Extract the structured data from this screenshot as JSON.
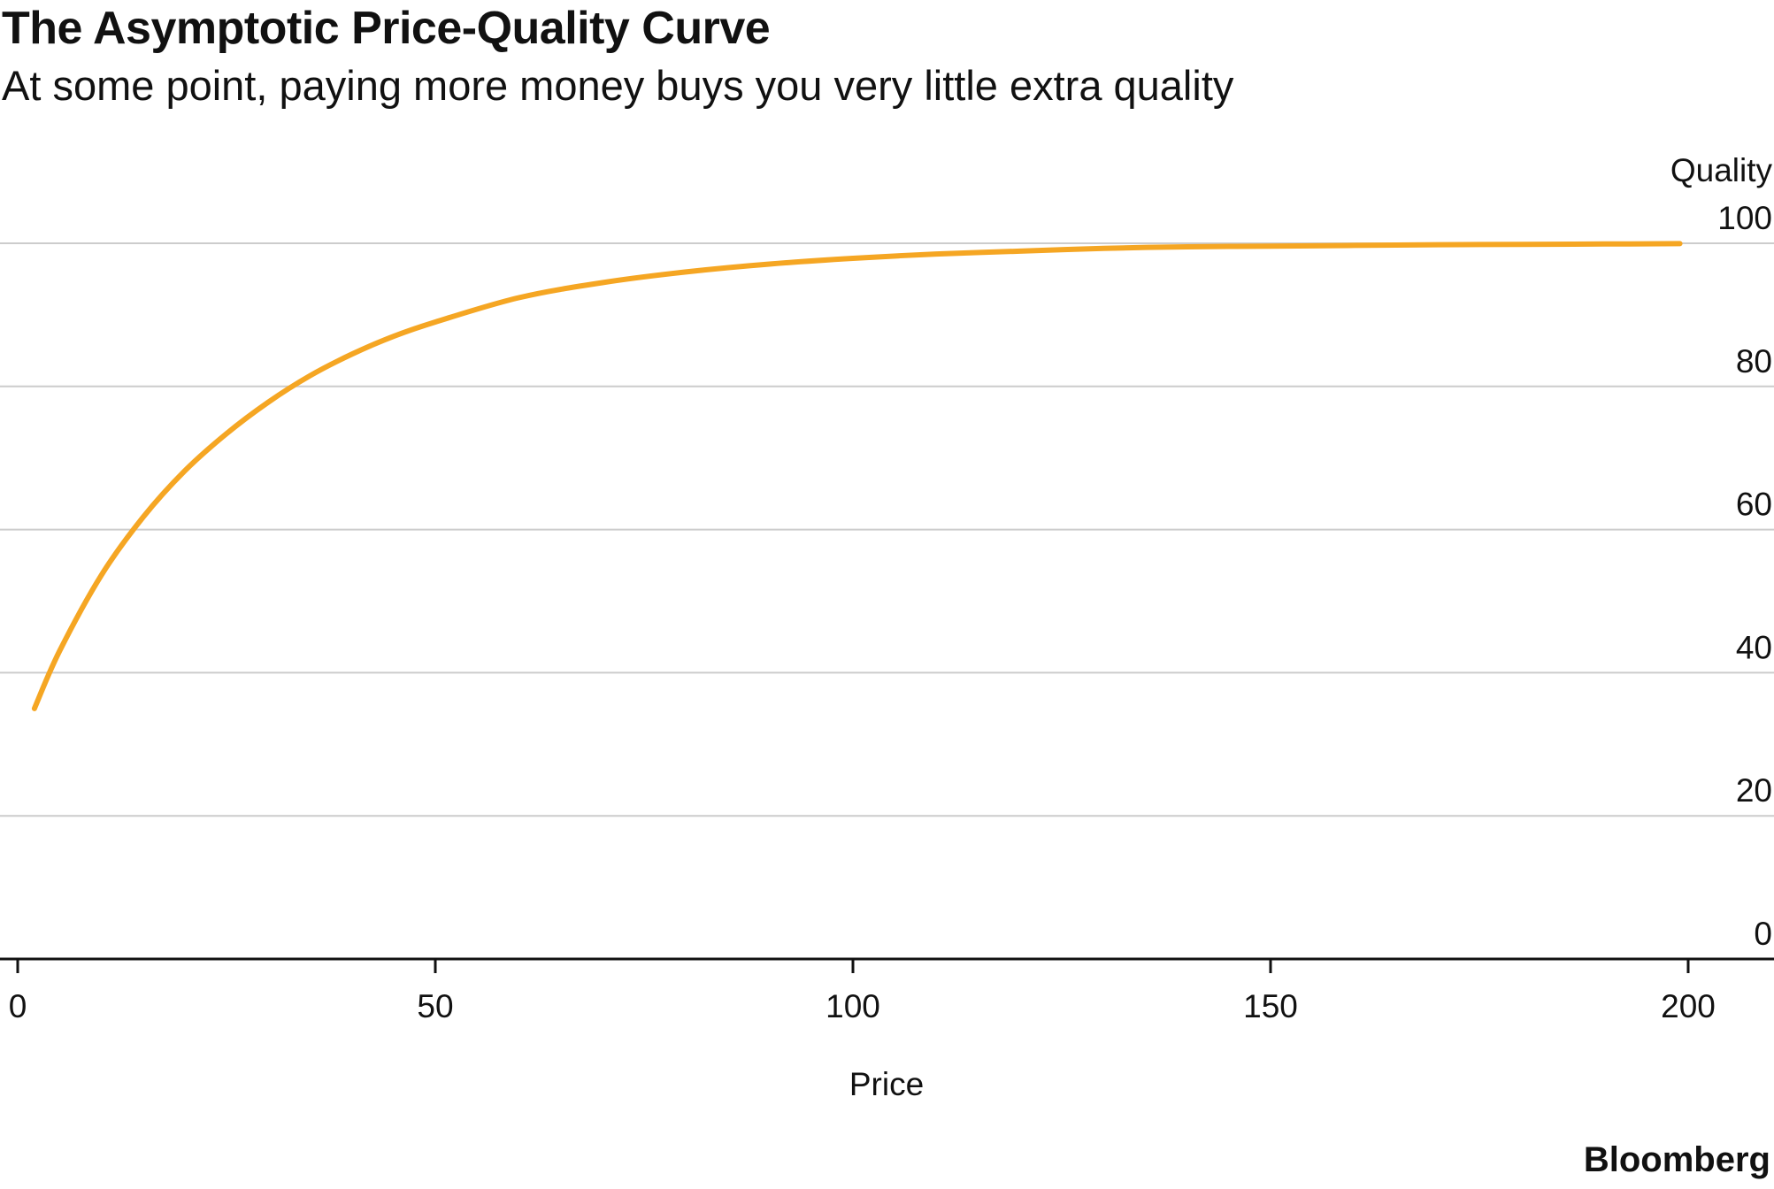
{
  "chart_data": {
    "type": "line",
    "title": "The Asymptotic Price-Quality Curve",
    "subtitle": "At some point, paying more money buys you very little extra quality",
    "xlabel": "Price",
    "ylabel": "Quality",
    "xlim": [
      0,
      200
    ],
    "ylim": [
      0,
      100
    ],
    "x_ticks": [
      "0",
      "50",
      "100",
      "150",
      "200"
    ],
    "y_ticks": [
      "0",
      "20",
      "40",
      "60",
      "80",
      "100"
    ],
    "y_axis_position": "right",
    "grid": true,
    "series": [
      {
        "color": "#F5A623",
        "x": [
          2,
          5,
          10,
          15,
          20,
          25,
          30,
          35,
          40,
          45,
          50,
          60,
          70,
          80,
          90,
          100,
          110,
          120,
          130,
          140,
          150,
          160,
          170,
          180,
          190,
          199
        ],
        "y": [
          35.0,
          43.0,
          53.6,
          61.7,
          68.2,
          73.4,
          77.8,
          81.5,
          84.5,
          87.0,
          89.0,
          92.4,
          94.5,
          96.0,
          97.1,
          97.9,
          98.5,
          98.9,
          99.3,
          99.5,
          99.6,
          99.7,
          99.8,
          99.85,
          99.9,
          99.95
        ]
      }
    ]
  },
  "source": "Bloomberg"
}
